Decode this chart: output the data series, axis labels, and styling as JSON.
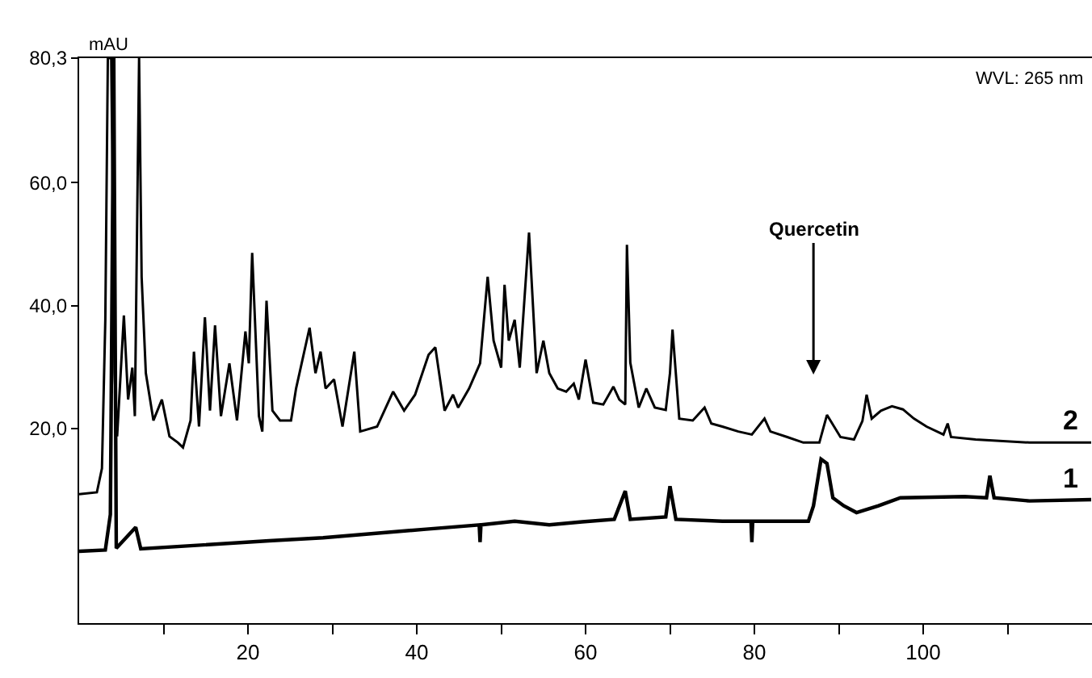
{
  "chart_data": {
    "type": "line",
    "ylabel": "mAU",
    "annotations": [
      "Quercetin",
      "WVL: 265 nm"
    ],
    "xlim": [
      0,
      120
    ],
    "ylim": [
      -11.7,
      80.3
    ],
    "xticks": [
      {
        "value": 10,
        "label": null
      },
      20,
      {
        "value": 30,
        "label": null
      },
      40,
      {
        "value": 50,
        "label": null
      },
      60,
      {
        "value": 70,
        "label": null
      },
      80,
      {
        "value": 90,
        "label": null
      },
      100,
      {
        "value": 110,
        "label": null
      }
    ],
    "yticks": [
      {
        "value": 20.0,
        "label": "20,0"
      },
      {
        "value": 40.0,
        "label": "40,0"
      },
      {
        "value": 60.0,
        "label": "60,0"
      },
      {
        "value": 80.3,
        "label": "80,3"
      }
    ],
    "legend": false,
    "marker": "none",
    "line_style": "solid",
    "series": [
      {
        "name": "2",
        "color": "#000000",
        "x": [
          0,
          2.1,
          2.7,
          3.1,
          3.4,
          3.8,
          4.2,
          4.5,
          5.3,
          5.8,
          6.3,
          6.6,
          7.1,
          7.4,
          7.9,
          8.8,
          9.8,
          10.7,
          11.7,
          12.3,
          13.2,
          13.6,
          14.2,
          14.9,
          15.5,
          16.1,
          16.8,
          17.8,
          18.7,
          19.7,
          20.1,
          20.5,
          21.3,
          21.7,
          22.2,
          22.9,
          23.8,
          25.1,
          25.7,
          27.3,
          28.0,
          28.6,
          29.2,
          30.2,
          31.2,
          32.6,
          33.3,
          35.3,
          37.2,
          38.5,
          39.8,
          41.4,
          42.2,
          43.3,
          44.3,
          44.9,
          46.2,
          47.5,
          48.4,
          49.1,
          50.0,
          50.4,
          50.9,
          51.6,
          52.2,
          53.3,
          54.2,
          55.0,
          55.7,
          56.7,
          57.7,
          58.6,
          59.2,
          60.0,
          60.9,
          62.1,
          63.3,
          64.0,
          64.7,
          64.9,
          65.3,
          66.3,
          67.2,
          68.2,
          69.5,
          70.0,
          70.3,
          71.1,
          72.7,
          74.1,
          74.9,
          76.2,
          78.1,
          79.7,
          81.2,
          81.9,
          83.9,
          85.8,
          87.7,
          88.6,
          90.2,
          91.8,
          92.8,
          93.3,
          93.9,
          95.0,
          96.3,
          97.6,
          98.9,
          100.4,
          102.4,
          102.9,
          103.3,
          106.2,
          112.6,
          119.9
        ],
        "values": [
          9.3,
          9.6,
          13.5,
          37.7,
          80.3,
          80.3,
          29,
          18.7,
          38.4,
          24.7,
          29.9,
          22,
          80.3,
          44.7,
          29,
          21.3,
          24.7,
          18.7,
          17.7,
          16.9,
          21.3,
          32.5,
          20.3,
          38.1,
          22.9,
          36.8,
          22,
          30.6,
          21.3,
          35.8,
          30.6,
          48.6,
          22,
          19.5,
          40.8,
          22.9,
          21.3,
          21.3,
          26.5,
          36.4,
          29,
          32.5,
          26.5,
          28,
          20.3,
          32.5,
          19.5,
          20.3,
          26,
          22.9,
          25.5,
          32,
          33.2,
          22.9,
          25.5,
          23.4,
          26.5,
          30.6,
          44.7,
          34.3,
          29.9,
          43.4,
          34.3,
          37.7,
          29.9,
          51.9,
          29,
          34.3,
          29,
          26.5,
          26,
          27.3,
          24.7,
          31.2,
          24.2,
          23.9,
          26.8,
          24.7,
          23.9,
          49.9,
          30.7,
          23.4,
          26.5,
          23.4,
          23,
          29,
          36.1,
          21.6,
          21.3,
          23.4,
          20.8,
          20.3,
          19.5,
          19,
          21.6,
          19.5,
          18.6,
          17.7,
          17.7,
          22.2,
          18.6,
          18.2,
          21.2,
          25.5,
          21.6,
          22.9,
          23.6,
          23.1,
          21.6,
          20.3,
          19,
          20.8,
          18.6,
          18.2,
          17.7,
          17.7
        ]
      },
      {
        "name": "1",
        "color": "#000000",
        "x": [
          0,
          3.1,
          3.7,
          4.1,
          4.4,
          6.7,
          7.3,
          22.5,
          28.9,
          41.1,
          47.4,
          47.5,
          47.6,
          51.6,
          55.7,
          59.6,
          63.4,
          64.7,
          65.3,
          69.5,
          70.0,
          70.7,
          76.2,
          79.6,
          79.7,
          79.8,
          86.4,
          87.0,
          87.9,
          88.6,
          89.3,
          90.6,
          92.1,
          94.7,
          97.3,
          104.9,
          107.5,
          107.9,
          108.4,
          112.6,
          119.9
        ],
        "values": [
          0,
          0.2,
          6,
          80.3,
          0.5,
          3.9,
          0.4,
          1.7,
          2.2,
          3.6,
          4.3,
          1.5,
          4.3,
          4.9,
          4.3,
          4.8,
          5.2,
          9.8,
          5.2,
          5.6,
          10.6,
          5.2,
          4.9,
          4.9,
          1.5,
          4.9,
          4.9,
          7.4,
          15,
          14.3,
          8.7,
          7.4,
          6.3,
          7.4,
          8.7,
          8.9,
          8.7,
          12.3,
          8.7,
          8.2,
          8.4
        ]
      }
    ]
  }
}
